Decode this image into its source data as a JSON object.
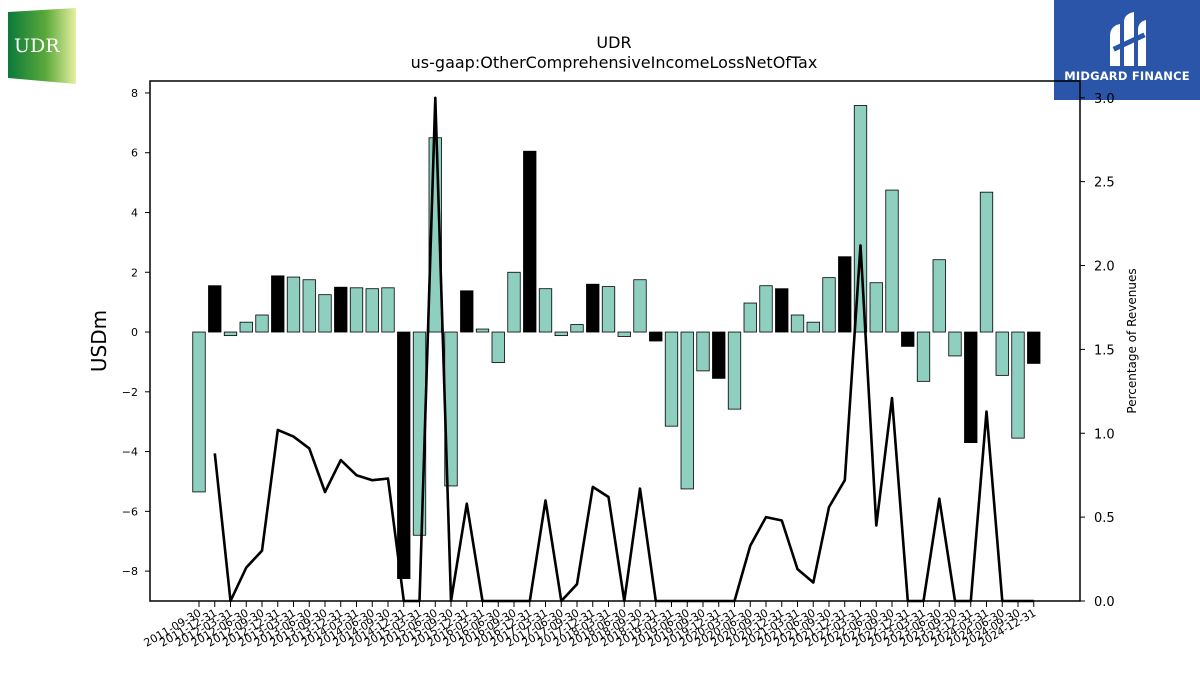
{
  "logos": {
    "left_text": "UDR",
    "right_text": "MIDGARD FINANCE"
  },
  "chart_data": {
    "type": "bar",
    "title": "UDR",
    "subtitle": "us-gaap:OtherComprehensiveIncomeLossNetOfTax",
    "ylabel": "USDm",
    "y2label": "Percentage of Revenues",
    "ylim": [
      -9.0,
      8.4
    ],
    "y2lim": [
      0.0,
      3.1
    ],
    "yticks": [
      -8,
      -6,
      -4,
      -2,
      0,
      2,
      4,
      6,
      8
    ],
    "y2ticks": [
      0.0,
      0.5,
      1.0,
      1.5,
      2.0,
      2.5,
      3.0
    ],
    "colors": {
      "bar_positive_pct": "#8ecfc0",
      "bar_black": "#000000",
      "line": "#000000"
    },
    "categories": [
      "2011-09-30",
      "2011-12-31",
      "2012-03-31",
      "2012-06-30",
      "2012-09-30",
      "2012-12-31",
      "2013-03-31",
      "2013-06-30",
      "2013-09-30",
      "2013-12-31",
      "2014-03-31",
      "2014-06-30",
      "2014-09-30",
      "2014-12-31",
      "2015-03-31",
      "2015-06-30",
      "2015-09-30",
      "2015-12-31",
      "2016-03-31",
      "2016-06-30",
      "2016-09-30",
      "2016-12-31",
      "2017-03-31",
      "2017-06-30",
      "2017-09-30",
      "2017-12-31",
      "2018-03-31",
      "2018-06-30",
      "2018-09-30",
      "2018-12-31",
      "2019-03-31",
      "2019-06-30",
      "2019-09-30",
      "2019-12-31",
      "2020-03-31",
      "2020-06-30",
      "2020-09-30",
      "2020-12-31",
      "2021-03-31",
      "2021-06-30",
      "2021-09-30",
      "2021-12-31",
      "2022-03-31",
      "2022-06-30",
      "2022-09-30",
      "2022-12-31",
      "2023-03-31",
      "2023-06-30",
      "2023-09-30",
      "2023-12-31",
      "2024-03-31",
      "2024-06-30",
      "2024-09-30",
      "2024-12-31"
    ],
    "values": [
      -5.35,
      1.55,
      -0.12,
      0.33,
      0.57,
      1.88,
      1.84,
      1.75,
      1.25,
      1.5,
      1.48,
      1.45,
      1.48,
      -8.25,
      -6.8,
      6.5,
      -5.15,
      1.38,
      0.1,
      -1.02,
      2.0,
      6.05,
      1.45,
      -0.12,
      0.25,
      1.6,
      1.52,
      -0.15,
      1.75,
      -0.3,
      -3.15,
      -5.25,
      -1.3,
      -1.55,
      -2.58,
      0.97,
      1.55,
      1.45,
      0.57,
      0.33,
      1.82,
      2.52,
      7.58,
      1.65,
      4.75,
      -0.48,
      -1.65,
      2.42,
      -0.8,
      -3.7,
      4.68,
      -1.45,
      -3.55,
      -1.05
    ],
    "bar_color_keys": [
      "t",
      "k",
      "t",
      "t",
      "t",
      "k",
      "t",
      "t",
      "t",
      "k",
      "t",
      "t",
      "t",
      "k",
      "t",
      "t",
      "t",
      "k",
      "t",
      "t",
      "t",
      "k",
      "t",
      "t",
      "t",
      "k",
      "t",
      "t",
      "t",
      "k",
      "t",
      "t",
      "t",
      "k",
      "t",
      "t",
      "t",
      "k",
      "t",
      "t",
      "t",
      "k",
      "t",
      "t",
      "t",
      "k",
      "t",
      "t",
      "t",
      "k",
      "t",
      "t",
      "t",
      "k"
    ],
    "line_pct": [
      null,
      0.88,
      0.0,
      0.2,
      0.3,
      1.02,
      0.98,
      0.91,
      0.65,
      0.84,
      0.75,
      0.72,
      0.73,
      0.0,
      0.0,
      3.0,
      0.0,
      0.58,
      0.0,
      0.0,
      0.0,
      0.0,
      0.6,
      0.0,
      0.1,
      0.68,
      0.62,
      0.0,
      0.67,
      0.0,
      0.0,
      0.0,
      0.0,
      0.0,
      0.0,
      0.33,
      0.5,
      0.48,
      0.19,
      0.11,
      0.56,
      0.72,
      2.12,
      0.45,
      1.21,
      0.0,
      0.0,
      0.61,
      0.0,
      0.0,
      1.13,
      0.0,
      0.0,
      0.0
    ]
  }
}
